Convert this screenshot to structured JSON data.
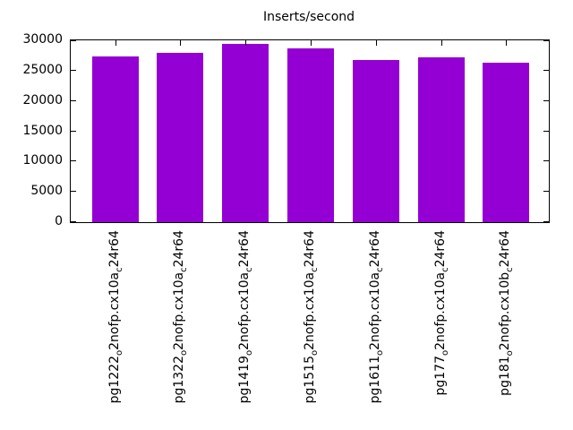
{
  "chart_data": {
    "type": "bar",
    "title": "Inserts/second",
    "categories": [
      "pg1222_o2nofp.cx10a_c24r64",
      "pg1322_o2nofp.cx10a_c24r64",
      "pg1419_o2nofp.cx10a_c24r64",
      "pg1515_o2nofp.cx10a_c24r64",
      "pg1611_o2nofp.cx10a_c24r64",
      "pg177_o2nofp.cx10a_c24r64",
      "pg181_o2nofp.cx10b_c24r64"
    ],
    "category_label_style": "underscore-renders-as-subscript",
    "values": [
      27400,
      27900,
      29350,
      28650,
      26700,
      27150,
      26300
    ],
    "xlabel": "",
    "ylabel": "",
    "ylim": [
      0,
      30000
    ],
    "yticks": [
      0,
      5000,
      10000,
      15000,
      20000,
      25000,
      30000
    ],
    "grid": false,
    "legend": "none",
    "bar_color": "#9400d3",
    "frame_color": "#000000",
    "background_color": "#ffffff",
    "x_label_rotation_degrees": -90
  }
}
